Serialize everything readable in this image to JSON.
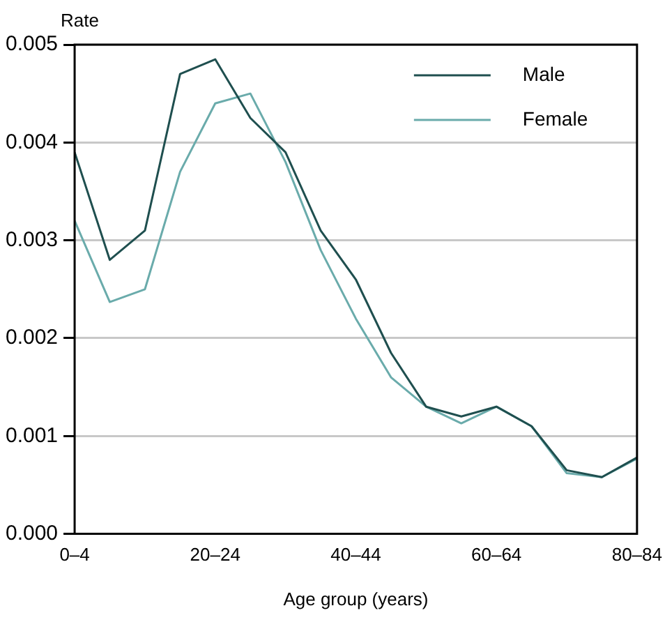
{
  "chart_data": {
    "type": "line",
    "ylabel": "Rate",
    "xlabel": "Age group (years)",
    "categories": [
      "0–4",
      null,
      null,
      null,
      "20–24",
      null,
      null,
      null,
      "40–44",
      null,
      null,
      null,
      "60–64",
      null,
      null,
      null,
      "80–84"
    ],
    "series": [
      {
        "name": "Male",
        "color": "#1f4f4f",
        "values": [
          0.0039,
          0.0028,
          0.0031,
          0.0047,
          0.00485,
          0.00425,
          0.0039,
          0.0031,
          0.0026,
          0.00185,
          0.0013,
          0.0012,
          0.0013,
          0.0011,
          0.00065,
          0.00058,
          0.00078
        ]
      },
      {
        "name": "Female",
        "color": "#6aabab",
        "values": [
          0.0032,
          0.00237,
          0.0025,
          0.0037,
          0.0044,
          0.0045,
          0.0038,
          0.0029,
          0.0022,
          0.0016,
          0.0013,
          0.00113,
          0.0013,
          0.0011,
          0.00062,
          0.00058,
          0.00077
        ]
      }
    ],
    "ylim": [
      0,
      0.005
    ],
    "yticks": [
      {
        "value": 0,
        "label": "0.000"
      },
      {
        "value": 0.001,
        "label": "0.001"
      },
      {
        "value": 0.002,
        "label": "0.002"
      },
      {
        "value": 0.003,
        "label": "0.003"
      },
      {
        "value": 0.004,
        "label": "0.004"
      },
      {
        "value": 0.005,
        "label": "0.005"
      }
    ],
    "grid": "y",
    "legend": "top right",
    "marker": "none",
    "line_style": "solid"
  }
}
